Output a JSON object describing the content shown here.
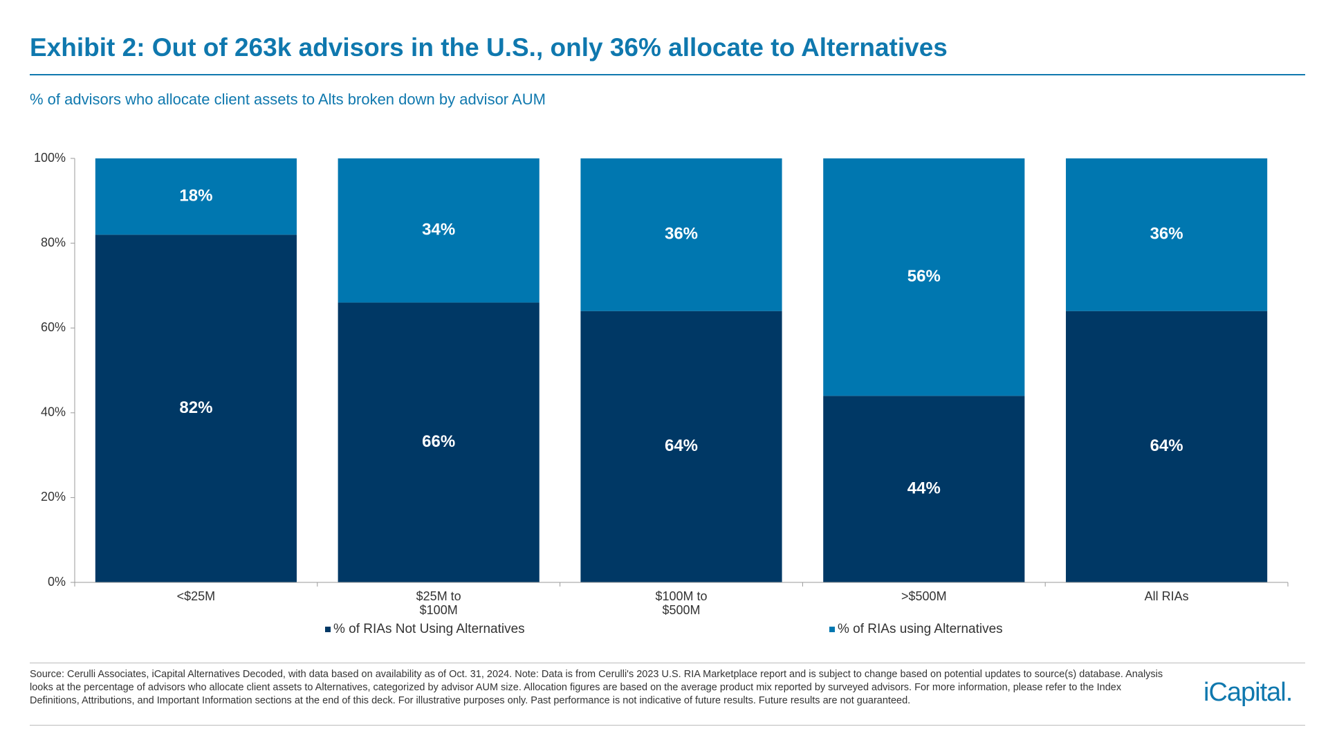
{
  "chart_data": {
    "type": "stacked-bar",
    "title": "Exhibit 2: Out of 263k advisors in the U.S., only 36% allocate to Alternatives",
    "subtitle": "% of advisors who allocate client assets to Alts broken down by advisor AUM",
    "categories": [
      "<$25M",
      "$25M to $100M",
      "$100M to $500M",
      ">$500M",
      "All RIAs"
    ],
    "series": [
      {
        "name": "% of RIAs Not Using Alternatives",
        "color": "#003865",
        "values": [
          82,
          66,
          64,
          44,
          64
        ],
        "value_labels": [
          "82%",
          "66%",
          "64%",
          "44%",
          "64%"
        ]
      },
      {
        "name": "% of RIAs using Alternatives",
        "color": "#0077b0",
        "values": [
          18,
          34,
          36,
          56,
          36
        ],
        "value_labels": [
          "18%",
          "34%",
          "36%",
          "56%",
          "36%"
        ]
      }
    ],
    "ylim": [
      0,
      100
    ],
    "yticks": [
      {
        "value": 0,
        "label": "0%"
      },
      {
        "value": 20,
        "label": "20%"
      },
      {
        "value": 40,
        "label": "40%"
      },
      {
        "value": 60,
        "label": "60%"
      },
      {
        "value": 80,
        "label": "80%"
      },
      {
        "value": 100,
        "label": "100%"
      }
    ],
    "legend": "bottom",
    "footer": "Source: Cerulli Associates, iCapital Alternatives Decoded, with data based on availability as of Oct. 31, 2024. Note: Data is from Cerulli's 2023 U.S. RIA Marketplace report and is subject to change based on potential updates to source(s) database. Analysis looks at the percentage of advisors who allocate client assets to Alternatives, categorized by advisor AUM size. Allocation figures are based on the average product mix reported by surveyed advisors. For more information, please refer to the Index Definitions, Attributions, and Important Information sections at the end of this deck. For illustrative purposes only. Past performance is not indicative of future results. Future results are not guaranteed.",
    "logo": "iCapital."
  }
}
